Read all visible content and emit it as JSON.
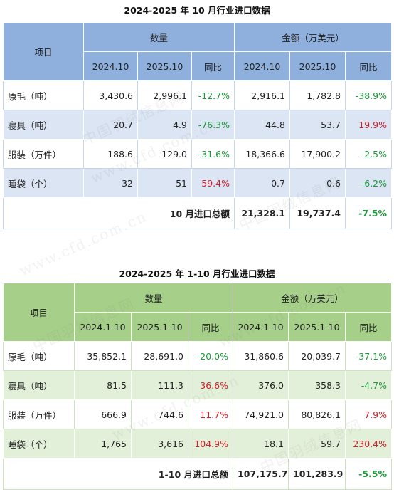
{
  "table1": {
    "title": "2024-2025 年 10 月行业进口数据",
    "item_header": "项目",
    "group_qty": "数量",
    "group_amount": "金额（万美元）",
    "sub_headers": [
      "2024.10",
      "2025.10",
      "同比",
      "2024.10",
      "2025.10",
      "同比"
    ],
    "rows": [
      {
        "item": "原毛（吨）",
        "q_prev": "3,430.6",
        "q_cur": "2,996.1",
        "q_yoy": "-12.7%",
        "a_prev": "2,916.1",
        "a_cur": "1,782.8",
        "a_yoy": "-38.9%"
      },
      {
        "item": "寝具（吨）",
        "q_prev": "20.7",
        "q_cur": "4.9",
        "q_yoy": "-76.3%",
        "a_prev": "44.8",
        "a_cur": "53.7",
        "a_yoy": "19.9%"
      },
      {
        "item": "服装（万件）",
        "q_prev": "188.6",
        "q_cur": "129.0",
        "q_yoy": "-31.6%",
        "a_prev": "18,366.6",
        "a_cur": "17,900.2",
        "a_yoy": "-2.5%"
      },
      {
        "item": "睡袋（个）",
        "q_prev": "32",
        "q_cur": "51",
        "q_yoy": "59.4%",
        "a_prev": "0.7",
        "a_cur": "0.6",
        "a_yoy": "-6.2%"
      }
    ],
    "total": {
      "label": "10 月进口总额",
      "prev": "21,328.1",
      "cur": "19,737.4",
      "yoy": "-7.5%"
    }
  },
  "table2": {
    "title": "2024-2025 年 1-10 月行业进口数据",
    "item_header": "项目",
    "group_qty": "数量",
    "group_amount": "金额（万美元）",
    "sub_headers": [
      "2024.1-10",
      "2025.1-10",
      "同比",
      "2024.1-10",
      "2025.1-10",
      "同比"
    ],
    "rows": [
      {
        "item": "原毛（吨）",
        "q_prev": "35,852.1",
        "q_cur": "28,691.0",
        "q_yoy": "-20.0%",
        "a_prev": "31,860.6",
        "a_cur": "20,039.7",
        "a_yoy": "-37.1%"
      },
      {
        "item": "寝具（吨）",
        "q_prev": "81.5",
        "q_cur": "111.3",
        "q_yoy": "36.6%",
        "a_prev": "376.0",
        "a_cur": "358.3",
        "a_yoy": "-4.7%"
      },
      {
        "item": "服装（万件）",
        "q_prev": "666.9",
        "q_cur": "744.6",
        "q_yoy": "11.7%",
        "a_prev": "74,921.0",
        "a_cur": "80,826.1",
        "a_yoy": "7.9%"
      },
      {
        "item": "睡袋（个）",
        "q_prev": "1,765",
        "q_cur": "3,616",
        "q_yoy": "104.9%",
        "a_prev": "18.1",
        "a_cur": "59.7",
        "a_yoy": "230.4%"
      }
    ],
    "total": {
      "label": "1-10 月进口总额",
      "prev": "107,175.7",
      "cur": "101,283.9",
      "yoy": "-5.5%"
    }
  },
  "watermark": {
    "cn": "中国羽绒信息网",
    "url": "www.cfd.com.cn"
  },
  "colors": {
    "positive": "#d4202a",
    "negative": "#1a9a3a",
    "header1": "#8fb0dc",
    "header2": "#a6d08a"
  }
}
